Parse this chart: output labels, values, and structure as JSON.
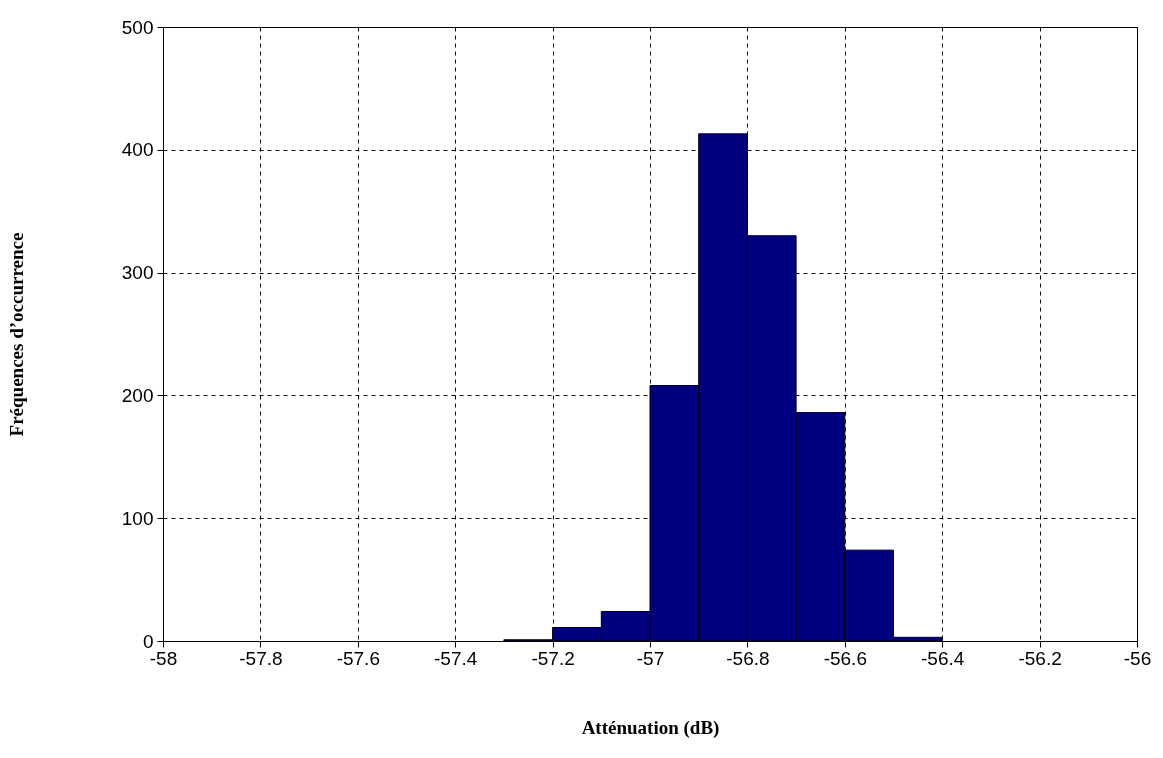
{
  "chart_data": {
    "type": "histogram",
    "xlabel": "Atténuation (dB)",
    "ylabel": "Fréquences d’occurrence",
    "bins": [
      -57.3,
      -57.2,
      -57.1,
      -57,
      -56.9,
      -56.8,
      -56.7,
      -56.6,
      -56.5,
      -56.4
    ],
    "values": [
      1,
      11,
      24,
      208,
      413,
      330,
      186,
      74,
      3
    ],
    "color": "#000080",
    "xlim": [
      -58,
      -56
    ],
    "xticks": [
      -58,
      -57.8,
      -57.6,
      -57.4,
      -57.2,
      -57,
      -56.8,
      -56.6,
      -56.4,
      -56.2,
      -56
    ],
    "ylim": [
      0,
      500
    ],
    "yticks": [
      0,
      100,
      200,
      300,
      400,
      500
    ],
    "grid": true
  }
}
